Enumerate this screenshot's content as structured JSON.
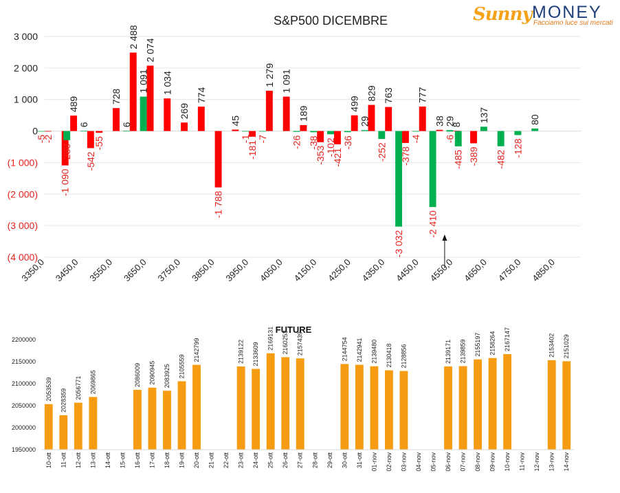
{
  "logo": {
    "brand_a": "Sunny",
    "brand_b": "MONEY",
    "tagline": "Facciamo luce sui mercati"
  },
  "colors": {
    "positive": "#ff0000",
    "negative": "#00b050",
    "future": "#f59c12",
    "neg_label": "#e8221d",
    "text": "#222222"
  },
  "chart_data": [
    {
      "type": "bar",
      "title": "S&P500 DICEMBRE",
      "ylim": [
        -4000,
        3000
      ],
      "yticks": [
        3000,
        2000,
        1000,
        0,
        -1000,
        -2000,
        -3000,
        -4000
      ],
      "ytick_labels": [
        "3 000",
        "2 000",
        "1 000",
        "0",
        "(1 000)",
        "(2 000)",
        "(3 000)",
        "(4 000)"
      ],
      "xlim": [
        3350,
        4925
      ],
      "xticks": [
        3350,
        3450,
        3550,
        3650,
        3750,
        3850,
        3950,
        4050,
        4150,
        4250,
        4350,
        4450,
        4550,
        4650,
        4750,
        4850
      ],
      "xtick_labels": [
        "3350,0",
        "3450,0",
        "3550,0",
        "3650,0",
        "3750,0",
        "3850,0",
        "3950,0",
        "4050,0",
        "4150,0",
        "4250,0",
        "4350,0",
        "4450,0",
        "4550,0",
        "4650,0",
        "4750,0",
        "4850,0"
      ],
      "series": [
        {
          "color": "red",
          "points": [
            {
              "strike": 3350,
              "value": -2,
              "label": "-2"
            },
            {
              "strike": 3400,
              "value": -1090,
              "label": "-1 090"
            },
            {
              "strike": 3425,
              "value": 489,
              "label": "489"
            },
            {
              "strike": 3475,
              "value": -542,
              "label": "-542"
            },
            {
              "strike": 3500,
              "value": -55,
              "label": "-55"
            },
            {
              "strike": 3550,
              "value": 728,
              "label": "728"
            },
            {
              "strike": 3600,
              "value": 2488,
              "label": "2 488"
            },
            {
              "strike": 3650,
              "value": 2074,
              "label": "2 074"
            },
            {
              "strike": 3700,
              "value": 1034,
              "label": "1 034"
            },
            {
              "strike": 3750,
              "value": 269,
              "label": "269"
            },
            {
              "strike": 3800,
              "value": 774,
              "label": "774"
            },
            {
              "strike": 3850,
              "value": -1788,
              "label": "-1 788"
            },
            {
              "strike": 3900,
              "value": 45,
              "label": "45"
            },
            {
              "strike": 3950,
              "value": -181,
              "label": "-181"
            },
            {
              "strike": 4000,
              "value": 1279,
              "label": "1 279"
            },
            {
              "strike": 4050,
              "value": 1091,
              "label": "1 091"
            },
            {
              "strike": 4100,
              "value": 189,
              "label": "189"
            },
            {
              "strike": 4150,
              "value": -353,
              "label": "-353"
            },
            {
              "strike": 4200,
              "value": -421,
              "label": "-421"
            },
            {
              "strike": 4250,
              "value": 499,
              "label": "499"
            },
            {
              "strike": 4300,
              "value": 829,
              "label": "829"
            },
            {
              "strike": 4350,
              "value": 763,
              "label": "763"
            },
            {
              "strike": 4400,
              "value": -378,
              "label": "-378"
            },
            {
              "strike": 4450,
              "value": 777,
              "label": "777"
            },
            {
              "strike": 4500,
              "value": 38,
              "label": "38"
            },
            {
              "strike": 4550,
              "value": 8,
              "label": "8"
            },
            {
              "strike": 4600,
              "value": -389,
              "label": "-389"
            }
          ]
        },
        {
          "color": "green",
          "points": [
            {
              "strike": 3350,
              "value": -5,
              "label": "-5"
            },
            {
              "strike": 3425,
              "value": -288,
              "label": "-288"
            },
            {
              "strike": 3475,
              "value": 6,
              "label": "6"
            },
            {
              "strike": 3600,
              "value": 6,
              "label": "6"
            },
            {
              "strike": 3650,
              "value": 1091,
              "label": "1 091"
            },
            {
              "strike": 3950,
              "value": -1,
              "label": "-1"
            },
            {
              "strike": 4000,
              "value": -7,
              "label": "-7"
            },
            {
              "strike": 4100,
              "value": -26,
              "label": "-26"
            },
            {
              "strike": 4150,
              "value": -38,
              "label": "-38"
            },
            {
              "strike": 4200,
              "value": -102,
              "label": "-102"
            },
            {
              "strike": 4250,
              "value": -36,
              "label": "-36"
            },
            {
              "strike": 4300,
              "value": 29,
              "label": "29"
            },
            {
              "strike": 4350,
              "value": -252,
              "label": "-252"
            },
            {
              "strike": 4400,
              "value": -3032,
              "label": "-3 032"
            },
            {
              "strike": 4450,
              "value": -4,
              "label": "-4"
            },
            {
              "strike": 4500,
              "value": -2410,
              "label": "-2 410"
            },
            {
              "strike": 4550,
              "value": -6,
              "label": "-6"
            },
            {
              "strike": 4550,
              "value": 29,
              "label": "29"
            },
            {
              "strike": 4575,
              "value": -485,
              "label": "-485"
            },
            {
              "strike": 4650,
              "value": 137,
              "label": "137"
            },
            {
              "strike": 4700,
              "value": -482,
              "label": "-482"
            },
            {
              "strike": 4750,
              "value": -128,
              "label": "-128"
            },
            {
              "strike": 4800,
              "value": 80,
              "label": "80"
            }
          ]
        }
      ],
      "annotation": {
        "type": "arrow",
        "strike": 4525
      }
    },
    {
      "type": "bar",
      "title": "FUTURE",
      "ylim": [
        1950000,
        2200000
      ],
      "yticks": [
        1950000,
        2000000,
        2050000,
        2100000,
        2150000,
        2200000
      ],
      "ytick_labels": [
        "1950000",
        "2000000",
        "2050000",
        "2100000",
        "2150000",
        "2200000"
      ],
      "categories": [
        "10-ott",
        "11-ott",
        "12-ott",
        "13-ott",
        "14-ott",
        "15-ott",
        "16-ott",
        "17-ott",
        "18-ott",
        "19-ott",
        "20-ott",
        "21-ott",
        "22-ott",
        "23-ott",
        "24-ott",
        "25-ott",
        "26-ott",
        "27-ott",
        "28-ott",
        "29-ott",
        "30-ott",
        "31-ott",
        "01-nov",
        "02-nov",
        "03-nov",
        "04-nov",
        "05-nov",
        "06-nov",
        "07-nov",
        "08-nov",
        "09-nov",
        "10-nov",
        "11-nov",
        "12-nov",
        "13-nov",
        "14-nov"
      ],
      "values": [
        2053539,
        2028359,
        2056771,
        2069865,
        null,
        null,
        2086009,
        2090945,
        2083925,
        2105559,
        2142799,
        null,
        null,
        2139122,
        2133609,
        2169131,
        2160253,
        2157439,
        null,
        null,
        2144754,
        2142941,
        2139480,
        2130418,
        2128856,
        null,
        null,
        2139171,
        2139859,
        2155197,
        2158264,
        2167147,
        null,
        null,
        2153402,
        2151029
      ],
      "labels": [
        "2053539",
        "2028359",
        "2056771",
        "2069865",
        "",
        "",
        "2086009",
        "2090945",
        "2083925",
        "2105559",
        "2142799",
        "",
        "",
        "2139122",
        "2133609",
        "2169131",
        "2160253",
        "2157439",
        "",
        "",
        "2144754",
        "2142941",
        "2139480",
        "2130418",
        "2128856",
        "",
        "",
        "2139171",
        "2139859",
        "2155197",
        "2158264",
        "2167147",
        "",
        "",
        "2153402",
        "2151029"
      ]
    }
  ]
}
